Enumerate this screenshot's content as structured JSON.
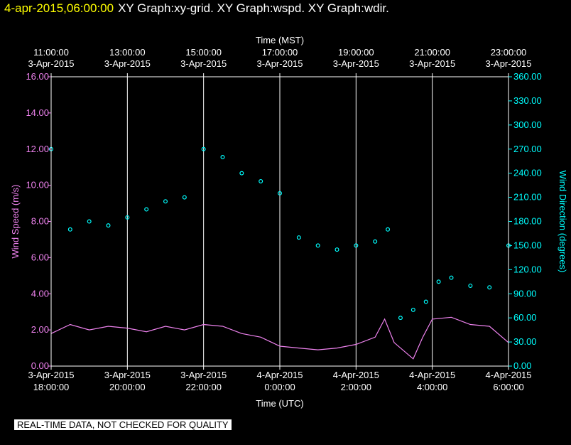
{
  "header": {
    "timestamp": "4-apr-2015,06:00:00",
    "graph_titles": "XY Graph:xy-grid.  XY Graph:wspd.  XY Graph:wdir."
  },
  "notice": "REAL-TIME DATA, NOT CHECKED FOR QUALITY",
  "colors": {
    "background": "#000000",
    "wind_speed": "#ee82ee",
    "wind_direction": "#00ffff",
    "timestamp": "#ffff00",
    "grid": "#ffffff"
  },
  "chart_data": {
    "type": "line",
    "top_axis": {
      "label": "Time (MST)",
      "ticks": [
        {
          "time": "11:00:00",
          "date": "3-Apr-2015"
        },
        {
          "time": "13:00:00",
          "date": "3-Apr-2015"
        },
        {
          "time": "15:00:00",
          "date": "3-Apr-2015"
        },
        {
          "time": "17:00:00",
          "date": "3-Apr-2015"
        },
        {
          "time": "19:00:00",
          "date": "3-Apr-2015"
        },
        {
          "time": "21:00:00",
          "date": "3-Apr-2015"
        },
        {
          "time": "23:00:00",
          "date": "3-Apr-2015"
        }
      ]
    },
    "bottom_axis": {
      "label": "Time (UTC)",
      "ticks": [
        {
          "date": "3-Apr-2015",
          "time": "18:00:00"
        },
        {
          "date": "3-Apr-2015",
          "time": "20:00:00"
        },
        {
          "date": "3-Apr-2015",
          "time": "22:00:00"
        },
        {
          "date": "4-Apr-2015",
          "time": "0:00:00"
        },
        {
          "date": "4-Apr-2015",
          "time": "2:00:00"
        },
        {
          "date": "4-Apr-2015",
          "time": "4:00:00"
        },
        {
          "date": "4-Apr-2015",
          "time": "6:00:00"
        }
      ]
    },
    "xlim_utc": [
      "3-Apr-2015 18:00",
      "4-Apr-2015 06:00"
    ],
    "left_axis": {
      "label": "Wind Speed (m/s)",
      "ylim": [
        0,
        16
      ],
      "tick_labels": [
        "0.00",
        "2.00",
        "4.00",
        "6.00",
        "8.00",
        "10.00",
        "12.00",
        "14.00",
        "16.00"
      ]
    },
    "right_axis": {
      "label": "Wind Direction (degrees)",
      "ylim": [
        0,
        360
      ],
      "tick_labels": [
        "0.00",
        "30.00",
        "60.00",
        "90.00",
        "120.00",
        "150.00",
        "180.00",
        "210.00",
        "240.00",
        "270.00",
        "300.00",
        "330.00",
        "360.00"
      ]
    },
    "grid": true,
    "series": [
      {
        "name": "wspd",
        "axis": "left",
        "style": "line",
        "x_utc": [
          "3-Apr-2015 18:00",
          "3-Apr-2015 18:30",
          "3-Apr-2015 19:00",
          "3-Apr-2015 19:30",
          "3-Apr-2015 20:00",
          "3-Apr-2015 20:30",
          "3-Apr-2015 21:00",
          "3-Apr-2015 21:30",
          "3-Apr-2015 22:00",
          "3-Apr-2015 22:30",
          "3-Apr-2015 23:00",
          "3-Apr-2015 23:30",
          "4-Apr-2015 00:00",
          "4-Apr-2015 00:30",
          "4-Apr-2015 01:00",
          "4-Apr-2015 01:30",
          "4-Apr-2015 02:00",
          "4-Apr-2015 02:30",
          "4-Apr-2015 02:45",
          "4-Apr-2015 03:00",
          "4-Apr-2015 03:30",
          "4-Apr-2015 03:45",
          "4-Apr-2015 04:00",
          "4-Apr-2015 04:30",
          "4-Apr-2015 05:00",
          "4-Apr-2015 05:30",
          "4-Apr-2015 06:00"
        ],
        "values": [
          1.8,
          2.3,
          2.0,
          2.2,
          2.1,
          1.9,
          2.2,
          2.0,
          2.3,
          2.2,
          1.8,
          1.6,
          1.1,
          1.0,
          0.9,
          1.0,
          1.2,
          1.6,
          2.6,
          1.3,
          0.4,
          1.6,
          2.6,
          2.7,
          2.3,
          2.2,
          1.3
        ]
      },
      {
        "name": "wdir",
        "axis": "right",
        "style": "points",
        "x_utc": [
          "3-Apr-2015 18:00",
          "3-Apr-2015 18:30",
          "3-Apr-2015 19:00",
          "3-Apr-2015 19:30",
          "3-Apr-2015 20:00",
          "3-Apr-2015 20:30",
          "3-Apr-2015 21:00",
          "3-Apr-2015 21:30",
          "3-Apr-2015 22:00",
          "3-Apr-2015 22:30",
          "3-Apr-2015 23:00",
          "3-Apr-2015 23:30",
          "4-Apr-2015 00:00",
          "4-Apr-2015 00:30",
          "4-Apr-2015 01:00",
          "4-Apr-2015 01:30",
          "4-Apr-2015 02:00",
          "4-Apr-2015 02:30",
          "4-Apr-2015 02:50",
          "4-Apr-2015 03:10",
          "4-Apr-2015 03:30",
          "4-Apr-2015 03:50",
          "4-Apr-2015 04:10",
          "4-Apr-2015 04:30",
          "4-Apr-2015 05:00",
          "4-Apr-2015 05:30",
          "4-Apr-2015 06:00"
        ],
        "values": [
          270,
          170,
          180,
          175,
          185,
          195,
          205,
          210,
          270,
          260,
          240,
          230,
          215,
          160,
          150,
          145,
          150,
          155,
          170,
          60,
          70,
          80,
          105,
          110,
          100,
          98,
          150
        ]
      }
    ]
  }
}
